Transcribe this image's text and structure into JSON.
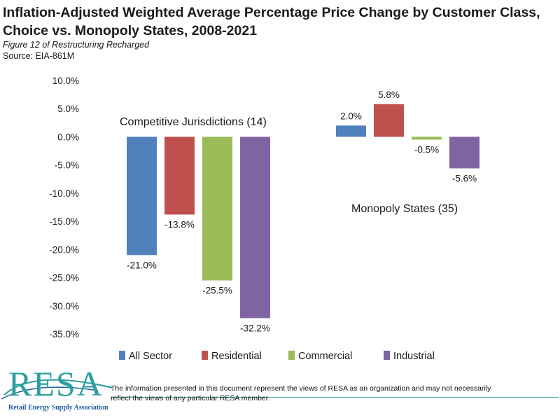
{
  "header": {
    "title": "Inflation-Adjusted Weighted Average Percentage Price Change by Customer Class, Choice vs. Monopoly States, 2008-2021",
    "subtitle": "Figure 12 of Restructuring Recharged",
    "source": "Source: EIA-861M"
  },
  "chart_data": {
    "type": "bar",
    "categories": [
      "Competitive Jurisdictions (14)",
      "Monopoly States (35)"
    ],
    "series": [
      {
        "name": "All Sector",
        "color": "#4f81bd",
        "values": [
          -21.0,
          2.0
        ],
        "labels": [
          "-21.0%",
          "2.0%"
        ]
      },
      {
        "name": "Residential",
        "color": "#c0504d",
        "values": [
          -13.8,
          5.8
        ],
        "labels": [
          "-13.8%",
          "5.8%"
        ]
      },
      {
        "name": "Commercial",
        "color": "#9bbb59",
        "values": [
          -25.5,
          -0.5
        ],
        "labels": [
          "-25.5%",
          "-0.5%"
        ]
      },
      {
        "name": "Industrial",
        "color": "#8064a2",
        "values": [
          -32.2,
          -5.6
        ],
        "labels": [
          "-32.2%",
          "-5.6%"
        ]
      }
    ],
    "ylim": [
      -35,
      10
    ],
    "yticks": [
      "10.0%",
      "5.0%",
      "0.0%",
      "-5.0%",
      "-10.0%",
      "-15.0%",
      "-20.0%",
      "-25.0%",
      "-30.0%",
      "-35.0%"
    ],
    "ytick_values": [
      10,
      5,
      0,
      -5,
      -10,
      -15,
      -20,
      -25,
      -30,
      -35
    ],
    "grid": false,
    "legend_position": "bottom"
  },
  "footer": {
    "logo_text": "RESA",
    "logo_subtext": "Retail Energy Supply Association",
    "disclaimer": "The information presented in this document represent the views of RESA as an organization and may not necessarily reflect the views of any particular RESA member."
  },
  "colors": {
    "brand_teal": "#2c9fa0",
    "brand_blue": "#1f5fa3"
  }
}
